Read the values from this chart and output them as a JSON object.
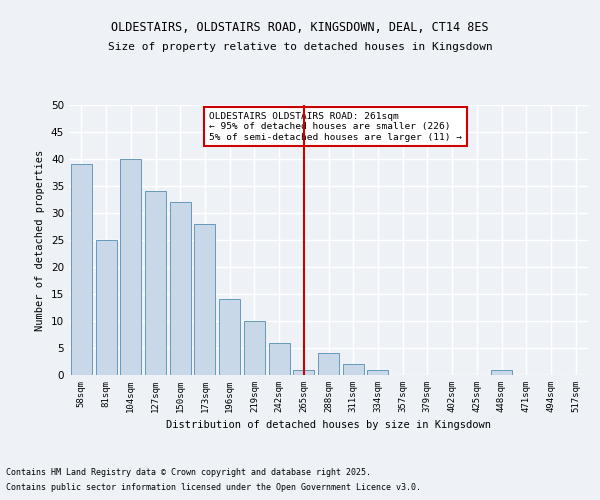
{
  "title1": "OLDESTAIRS, OLDSTAIRS ROAD, KINGSDOWN, DEAL, CT14 8ES",
  "title2": "Size of property relative to detached houses in Kingsdown",
  "xlabel": "Distribution of detached houses by size in Kingsdown",
  "ylabel": "Number of detached properties",
  "categories": [
    "58sqm",
    "81sqm",
    "104sqm",
    "127sqm",
    "150sqm",
    "173sqm",
    "196sqm",
    "219sqm",
    "242sqm",
    "265sqm",
    "288sqm",
    "311sqm",
    "334sqm",
    "357sqm",
    "379sqm",
    "402sqm",
    "425sqm",
    "448sqm",
    "471sqm",
    "494sqm",
    "517sqm"
  ],
  "values": [
    39,
    25,
    40,
    34,
    32,
    28,
    14,
    10,
    6,
    1,
    4,
    2,
    1,
    0,
    0,
    0,
    0,
    1,
    0,
    0,
    0
  ],
  "bar_color": "#c8d8e8",
  "bar_edge_color": "#6699bb",
  "vline_x": 9.0,
  "vline_color": "#cc0000",
  "annotation_title": "OLDESTAIRS OLDSTAIRS ROAD: 261sqm",
  "annotation_line2": "← 95% of detached houses are smaller (226)",
  "annotation_line3": "5% of semi-detached houses are larger (11) →",
  "annotation_box_color": "#ffffff",
  "annotation_box_edge": "#cc0000",
  "ylim": [
    0,
    50
  ],
  "yticks": [
    0,
    5,
    10,
    15,
    20,
    25,
    30,
    35,
    40,
    45,
    50
  ],
  "background_color": "#eef2f7",
  "grid_color": "#ffffff",
  "footer_line1": "Contains HM Land Registry data © Crown copyright and database right 2025.",
  "footer_line2": "Contains public sector information licensed under the Open Government Licence v3.0."
}
